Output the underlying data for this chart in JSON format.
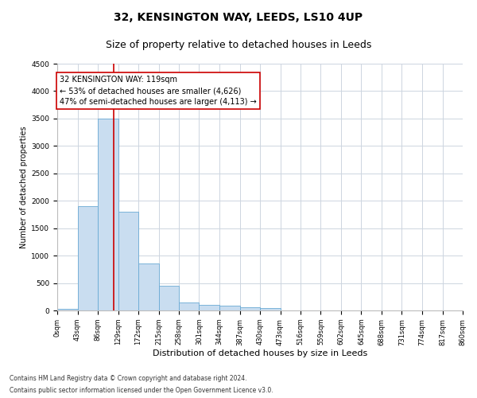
{
  "title": "32, KENSINGTON WAY, LEEDS, LS10 4UP",
  "subtitle": "Size of property relative to detached houses in Leeds",
  "xlabel": "Distribution of detached houses by size in Leeds",
  "ylabel": "Number of detached properties",
  "bar_edges": [
    0,
    43,
    86,
    129,
    172,
    215,
    258,
    301,
    344,
    387,
    430,
    473,
    516,
    559,
    602,
    645,
    688,
    731,
    774,
    817,
    860
  ],
  "bar_heights": [
    30,
    1900,
    3500,
    1800,
    850,
    450,
    150,
    100,
    80,
    60,
    50,
    0,
    0,
    0,
    0,
    0,
    0,
    0,
    0,
    0
  ],
  "bar_color": "#c9ddf0",
  "bar_edge_color": "#6aaad4",
  "property_size": 119,
  "vline_color": "#cc0000",
  "annotation_text": "32 KENSINGTON WAY: 119sqm\n← 53% of detached houses are smaller (4,626)\n47% of semi-detached houses are larger (4,113) →",
  "annotation_box_color": "#ffffff",
  "annotation_box_edge_color": "#cc0000",
  "ylim": [
    0,
    4500
  ],
  "yticks": [
    0,
    500,
    1000,
    1500,
    2000,
    2500,
    3000,
    3500,
    4000,
    4500
  ],
  "footer_line1": "Contains HM Land Registry data © Crown copyright and database right 2024.",
  "footer_line2": "Contains public sector information licensed under the Open Government Licence v3.0.",
  "bg_color": "#ffffff",
  "grid_color": "#cdd5e0",
  "title_fontsize": 10,
  "subtitle_fontsize": 9,
  "ylabel_fontsize": 7,
  "xlabel_fontsize": 8,
  "tick_fontsize": 6,
  "annotation_fontsize": 7,
  "footer_fontsize": 5.5
}
